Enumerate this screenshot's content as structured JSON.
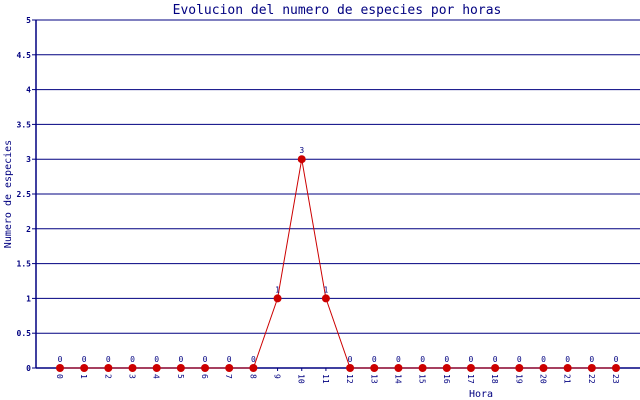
{
  "chart_data": {
    "type": "line",
    "title": "Evolucion del numero de especies por horas",
    "xlabel": "Hora",
    "ylabel": "Numero de especies",
    "categories": [
      "0",
      "1",
      "2",
      "3",
      "4",
      "5",
      "6",
      "7",
      "8",
      "9",
      "10",
      "11",
      "12",
      "13",
      "14",
      "15",
      "16",
      "17",
      "18",
      "19",
      "20",
      "21",
      "22",
      "23"
    ],
    "values": [
      0,
      0,
      0,
      0,
      0,
      0,
      0,
      0,
      0,
      1,
      3,
      1,
      0,
      0,
      0,
      0,
      0,
      0,
      0,
      0,
      0,
      0,
      0,
      0
    ],
    "ylim": [
      0,
      5
    ],
    "yticks": [
      "0",
      "0.5",
      "1",
      "1.5",
      "2",
      "2.5",
      "3",
      "3.5",
      "4",
      "4.5",
      "5"
    ],
    "grid": true,
    "data_labels": true,
    "colors": {
      "axis": "#000080",
      "line": "#cc0000",
      "marker": "#cc0000",
      "labels": "#000080"
    }
  }
}
